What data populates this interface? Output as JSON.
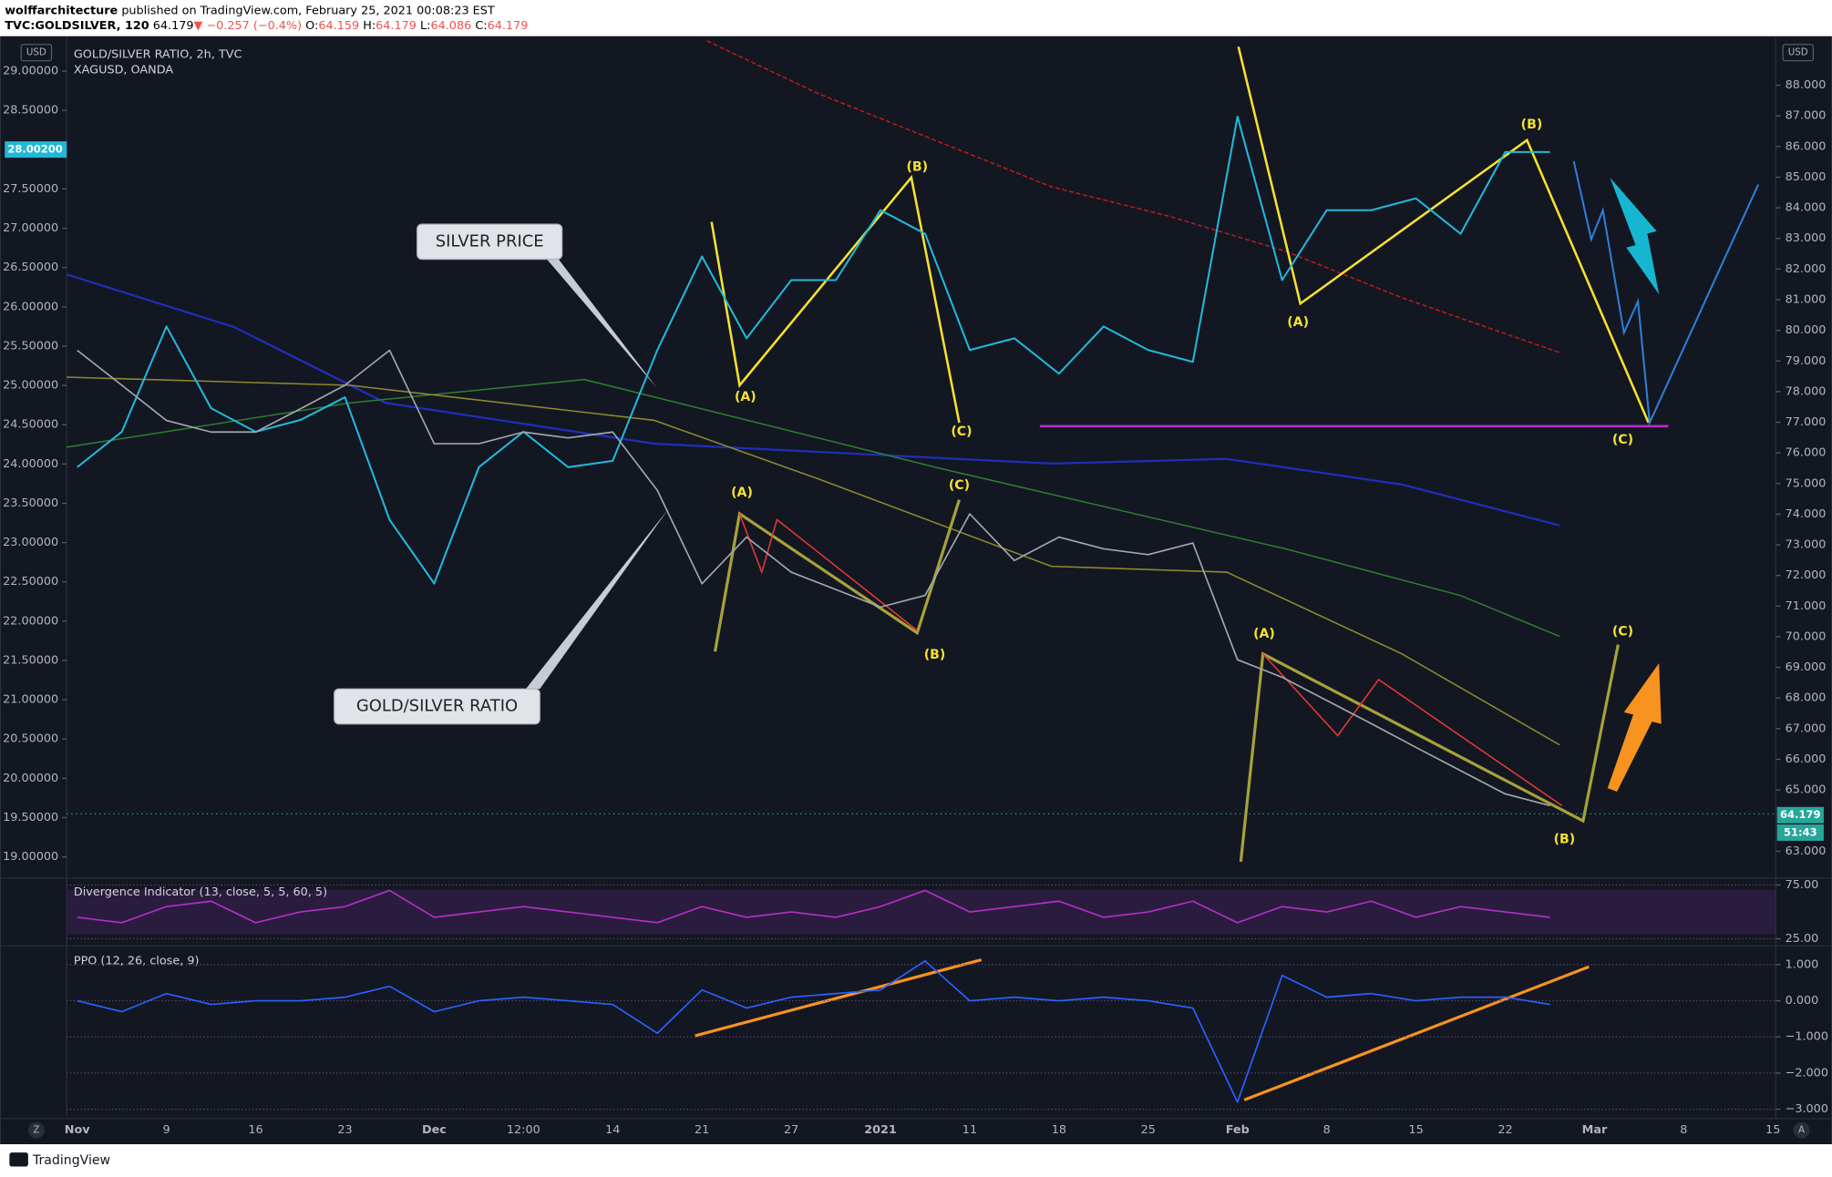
{
  "header": {
    "author": "wolffarchitecture",
    "published": "published on TradingView.com, February 25, 2021 00:08:23 EST",
    "symbol": "TVC:GOLDSILVER, 120",
    "last": "64.179",
    "change": "▼ −0.257 (−0.4%)",
    "ohlc": [
      {
        "label": "O:",
        "value": "64.159"
      },
      {
        "label": "H:",
        "value": "64.179"
      },
      {
        "label": "L:",
        "value": "64.086"
      },
      {
        "label": "C:",
        "value": "64.179"
      }
    ]
  },
  "footer": {
    "brand": "TradingView",
    "left_button": "Z",
    "right_button": "A"
  },
  "chart_data": [
    {
      "type": "line",
      "title": "GOLD/SILVER RATIO, 2h, TVC",
      "subtitle": "XAGUSD, OANDA",
      "currency_left": "USD",
      "currency_right": "USD",
      "annotations": [
        "SILVER PRICE",
        "GOLD/SILVER RATIO"
      ],
      "wave_labels": [
        "(A)",
        "(B)",
        "(C)",
        "(A)",
        "(B)",
        "(C)",
        "(A)",
        "(B)",
        "(C)",
        "(A)",
        "(B)",
        "(C)"
      ],
      "categories": [
        "Nov",
        null,
        "9",
        null,
        "16",
        null,
        "23",
        null,
        "Dec",
        null,
        "12:00",
        null,
        "14",
        null,
        "21",
        null,
        "27",
        null,
        "2021",
        null,
        "11",
        null,
        "18",
        null,
        "25",
        null,
        "Feb",
        null,
        "8",
        null,
        "15",
        null,
        "22",
        null,
        "Mar",
        null,
        "8",
        null,
        "15"
      ],
      "series": [
        {
          "name": "XAGUSD",
          "color": "#22b8d8",
          "axis": "y",
          "values": [
            23.96,
            24.41,
            25.75,
            24.71,
            24.41,
            24.56,
            24.85,
            23.29,
            22.48,
            23.96,
            24.41,
            23.96,
            24.04,
            25.45,
            26.64,
            25.6,
            26.34,
            26.34,
            27.23,
            26.93,
            25.45,
            25.6,
            25.15,
            25.75,
            25.45,
            25.3,
            28.42,
            26.34,
            27.23,
            27.23,
            27.38,
            26.93,
            27.97,
            27.97,
            null,
            null,
            null,
            null,
            null
          ]
        },
        {
          "name": "GOLDSILVER",
          "color": "#a4a6ad",
          "axis": "y2",
          "values": [
            79.35,
            78.21,
            77.06,
            76.68,
            76.68,
            77.44,
            78.21,
            79.35,
            76.3,
            76.3,
            76.68,
            76.49,
            76.68,
            74.78,
            71.73,
            73.25,
            72.11,
            71.54,
            70.97,
            71.35,
            74.01,
            72.49,
            73.25,
            72.87,
            72.68,
            73.06,
            69.25,
            68.68,
            67.92,
            67.16,
            66.39,
            65.63,
            64.87,
            64.49,
            null,
            null,
            null,
            null,
            null
          ]
        }
      ],
      "ylim": [
        18.76,
        29.37
      ],
      "yticks": [
        {
          "value": 19,
          "label": "19.00000"
        },
        {
          "value": 19.5,
          "label": "19.50000"
        },
        {
          "value": 20,
          "label": "20.00000"
        },
        {
          "value": 20.5,
          "label": "20.50000"
        },
        {
          "value": 21,
          "label": "21.00000"
        },
        {
          "value": 21.5,
          "label": "21.50000"
        },
        {
          "value": 22,
          "label": "22.00000"
        },
        {
          "value": 22.5,
          "label": "22.50000"
        },
        {
          "value": 23,
          "label": "23.00000"
        },
        {
          "value": 23.5,
          "label": "23.50000"
        },
        {
          "value": 24,
          "label": "24.00000"
        },
        {
          "value": 24.5,
          "label": "24.50000"
        },
        {
          "value": 25,
          "label": "25.00000"
        },
        {
          "value": 25.5,
          "label": "25.50000"
        },
        {
          "value": 26,
          "label": "26.00000"
        },
        {
          "value": 26.5,
          "label": "26.50000"
        },
        {
          "value": 27,
          "label": "27.00000"
        },
        {
          "value": 27.5,
          "label": "27.50000"
        },
        {
          "value": 28.5,
          "label": "28.50000"
        },
        {
          "value": 29,
          "label": "29.00000"
        }
      ],
      "y2lim": [
        62.2,
        89.41
      ],
      "y2ticks": [
        {
          "value": 63,
          "label": "63.000"
        },
        {
          "value": 65,
          "label": "65.000"
        },
        {
          "value": 66,
          "label": "66.000"
        },
        {
          "value": 67,
          "label": "67.000"
        },
        {
          "value": 68,
          "label": "68.000"
        },
        {
          "value": 69,
          "label": "69.000"
        },
        {
          "value": 70,
          "label": "70.000"
        },
        {
          "value": 71,
          "label": "71.000"
        },
        {
          "value": 72,
          "label": "72.000"
        },
        {
          "value": 73,
          "label": "73.000"
        },
        {
          "value": 74,
          "label": "74.000"
        },
        {
          "value": 75,
          "label": "75.000"
        },
        {
          "value": 76,
          "label": "76.000"
        },
        {
          "value": 77,
          "label": "77.000"
        },
        {
          "value": 78,
          "label": "78.000"
        },
        {
          "value": 79,
          "label": "79.000"
        },
        {
          "value": 80,
          "label": "80.000"
        },
        {
          "value": 81,
          "label": "81.000"
        },
        {
          "value": 82,
          "label": "82.000"
        },
        {
          "value": 83,
          "label": "83.000"
        },
        {
          "value": 84,
          "label": "84.000"
        },
        {
          "value": 85,
          "label": "85.000"
        },
        {
          "value": 86,
          "label": "86.000"
        },
        {
          "value": 87,
          "label": "87.000"
        },
        {
          "value": 88,
          "label": "88.000"
        }
      ],
      "price_tags": [
        {
          "value": 28.002,
          "label": "28.00200",
          "axis": "y",
          "color": "#22b8d8"
        },
        {
          "value": 64.179,
          "label": "64.179",
          "axis": "y2",
          "color": "#26a69a"
        }
      ],
      "countdown": "51:43"
    },
    {
      "type": "line",
      "title": "Divergence Indicator (13, close, 5, 5, 60, 5)",
      "color": "#b32fc4",
      "values": [
        45,
        40,
        55,
        60,
        40,
        50,
        55,
        70,
        45,
        50,
        55,
        50,
        45,
        40,
        55,
        45,
        50,
        45,
        55,
        70,
        50,
        55,
        60,
        45,
        50,
        60,
        40,
        55,
        50,
        60,
        45,
        55,
        50,
        45
      ],
      "ylim": [
        18.5,
        81.5
      ],
      "yticks": [
        {
          "value": 25,
          "label": "25.00"
        },
        {
          "value": 75,
          "label": "75.00"
        }
      ]
    },
    {
      "type": "line",
      "title": "PPO (12, 26, close, 9)",
      "color": "#2962ff",
      "values": [
        0,
        -0.3,
        0.2,
        -0.1,
        0,
        0,
        0.1,
        0.4,
        -0.3,
        0,
        0.1,
        0,
        -0.1,
        -0.9,
        0.3,
        -0.2,
        0.1,
        0.2,
        0.3,
        1.1,
        0,
        0.1,
        0,
        0.1,
        0,
        -0.2,
        -2.8,
        0.7,
        0.1,
        0.2,
        0,
        0.1,
        0.1,
        -0.1
      ],
      "ylim": [
        -3.26,
        1.52
      ],
      "yticks": [
        {
          "value": 1,
          "label": "1.000"
        },
        {
          "value": 0,
          "label": "0.000"
        },
        {
          "value": -1,
          "label": "−1.000"
        },
        {
          "value": -2,
          "label": "−2.000"
        },
        {
          "value": -3,
          "label": "−3.000"
        }
      ]
    }
  ]
}
